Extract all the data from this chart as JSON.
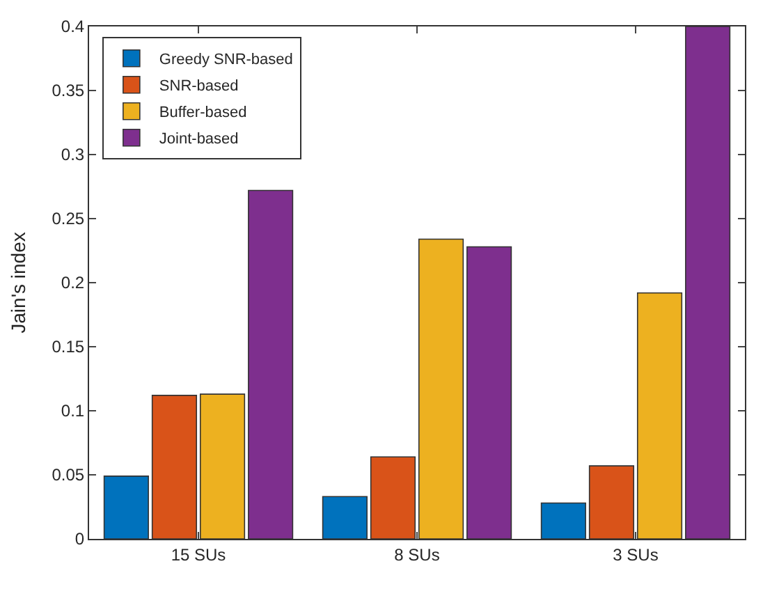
{
  "chart_data": {
    "type": "bar",
    "ylabel": "Jain's index",
    "categories": [
      "15 SUs",
      "8 SUs",
      "3 SUs"
    ],
    "series": [
      {
        "name": "Greedy SNR-based",
        "color": "#0072bd",
        "values": [
          0.049,
          0.033,
          0.028
        ]
      },
      {
        "name": "SNR-based",
        "color": "#d95319",
        "values": [
          0.112,
          0.064,
          0.057
        ]
      },
      {
        "name": "Buffer-based",
        "color": "#edb120",
        "values": [
          0.113,
          0.234,
          0.192
        ]
      },
      {
        "name": "Joint-based",
        "color": "#7e2f8e",
        "values": [
          0.272,
          0.228,
          0.4
        ]
      }
    ],
    "ylim": [
      0,
      0.4
    ],
    "yticks": [
      0,
      0.05,
      0.1,
      0.15,
      0.2,
      0.25,
      0.3,
      0.35,
      0.4
    ],
    "legend": "top left"
  }
}
